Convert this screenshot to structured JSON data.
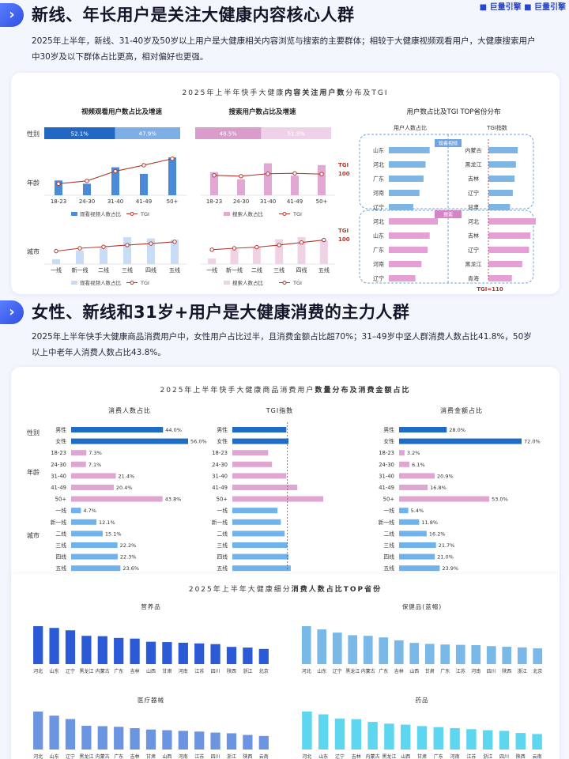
{
  "brand": "■ 巨量引擎   ■ 巨量引擎",
  "section1": {
    "title": "新线、年长用户是关注大健康内容核心人群",
    "text": "2025年上半年，新线、31-40岁及50岁以上用户是大健康相关内容浏览与搜索的主要群体；相较于大健康视频观看用户，大健康搜索用户中30岁及以下群体占比更高，相对偏好也更强。"
  },
  "section2": {
    "title": "女性、新线和31岁+用户是大健康消费的主力人群",
    "text": "2025年上半年快手大健康商品消费用户中，女性用户占比过半，且消费金额占比超70%；31–49岁中坚人群消费人数占比41.8%，50岁以上中老年人消费人数占比43.8%。"
  },
  "card1": {
    "title_pre": "2025年上半年快手大健康",
    "title_bold": "内容关注用户数",
    "title_post": "分布及TGI",
    "row_labels": {
      "gender": "性别",
      "age": "年龄",
      "city": "城市"
    },
    "tgi_label": "TGI",
    "tgi_ref": "100"
  },
  "card2": {
    "title_pre": "2025年上半年快手大健康商品消费用户",
    "title_bold": "数量分布及消费金额占比",
    "row_labels": {
      "gender": "性别",
      "age": "年龄",
      "city": "城市"
    },
    "tgi_ref": "TGI=100"
  },
  "card3": {
    "title_pre": "2025年上半年大健康细分",
    "title_bold": "消费人数占比TOP省份"
  },
  "chart_data": [
    {
      "type": "bar",
      "title": "视频观看用户数占比及增速",
      "categories": [
        "男",
        "女"
      ],
      "value_labels": [
        "52.1%",
        "47.9%"
      ],
      "values": [
        52.1,
        47.9
      ]
    },
    {
      "type": "bar",
      "title": "搜索用户数占比及增速",
      "categories": [
        "男",
        "女"
      ],
      "value_labels": [
        "48.5%",
        "51.5%"
      ],
      "values": [
        48.5,
        51.5
      ]
    },
    {
      "type": "bar",
      "title": "视频观看用户数占比及增速 - 年龄",
      "categories": [
        "18-23",
        "24-30",
        "31-40",
        "41-49",
        "50+"
      ],
      "series": [
        {
          "name": "观看视频人数占比",
          "values": [
            9,
            7,
            17,
            13,
            23
          ]
        },
        {
          "name": "TGI",
          "values": [
            78,
            84,
            105,
            118,
            132
          ]
        }
      ]
    },
    {
      "type": "bar",
      "title": "搜索用户数占比及增速 - 年龄",
      "categories": [
        "18-23",
        "24-30",
        "31-40",
        "41-49",
        "50+"
      ],
      "series": [
        {
          "name": "搜索人数占比",
          "values": [
            13,
            9,
            18,
            11,
            17
          ]
        },
        {
          "name": "TGI",
          "values": [
            100,
            98,
            104,
            105,
            103
          ]
        }
      ]
    },
    {
      "type": "bar",
      "title": "视频观看用户数占比及增速 - 城市",
      "categories": [
        "一线",
        "新一线",
        "二线",
        "三线",
        "四线",
        "五线"
      ],
      "series": [
        {
          "name": "观看视频人数占比",
          "values": [
            4,
            11,
            13,
            22,
            21,
            20
          ]
        },
        {
          "name": "TGI",
          "values": [
            84,
            92,
            96,
            101,
            105,
            110
          ]
        }
      ]
    },
    {
      "type": "bar",
      "title": "搜索用户数占比及增速 - 城市",
      "categories": [
        "一线",
        "新一线",
        "二线",
        "三线",
        "四线",
        "五线"
      ],
      "series": [
        {
          "name": "搜索人数占比",
          "values": [
            5,
            13,
            15,
            22,
            24,
            21
          ]
        },
        {
          "name": "TGI",
          "values": [
            88,
            92,
            95,
            101,
            108,
            115
          ]
        }
      ]
    },
    {
      "type": "bar",
      "title": "用户数占比及TGI TOP省份分布",
      "column_headers": [
        "用户人数占比",
        "TGI指数"
      ],
      "segments": [
        {
          "name": "观看视频",
          "share": {
            "categories": [
              "山东",
              "河北",
              "广东",
              "河南",
              "辽宁"
            ],
            "values": [
              10,
              9,
              8.5,
              7.5,
              6
            ]
          },
          "tgi": {
            "categories": [
              "内蒙古",
              "黑龙江",
              "吉林",
              "辽宁",
              "甘肃"
            ],
            "values": [
              135,
              131,
              128,
              124,
              118
            ]
          }
        },
        {
          "name": "搜索",
          "share": {
            "categories": [
              "河北",
              "山东",
              "广东",
              "河南",
              "辽宁"
            ],
            "values": [
              12,
              10,
              9.5,
              8,
              6.5
            ]
          },
          "tgi": {
            "categories": [
              "河北",
              "吉林",
              "辽宁",
              "黑龙江",
              "青海"
            ],
            "values": [
              175,
              163,
              160,
              145,
              122
            ]
          }
        }
      ],
      "reference": "TGI=110"
    },
    {
      "type": "bar",
      "title": "消费人数占比",
      "categories": [
        "男性",
        "女性",
        "18-23",
        "24-30",
        "31-40",
        "41-49",
        "50+",
        "一线",
        "新一线",
        "二线",
        "三线",
        "四线",
        "五线"
      ],
      "values": [
        44.0,
        56.0,
        7.3,
        7.1,
        21.4,
        20.4,
        43.8,
        4.7,
        12.1,
        15.1,
        22.2,
        22.3,
        23.6
      ],
      "value_labels": [
        "44.0%",
        "56.0%",
        "7.3%",
        "7.1%",
        "21.4%",
        "20.4%",
        "43.8%",
        "4.7%",
        "12.1%",
        "15.1%",
        "22.2%",
        "22.3%",
        "23.6%"
      ]
    },
    {
      "type": "bar",
      "title": "TGI指数",
      "categories": [
        "男性",
        "女性",
        "18-23",
        "24-30",
        "31-40",
        "41-49",
        "50+",
        "一线",
        "新一线",
        "二线",
        "三线",
        "四线",
        "五线"
      ],
      "values": [
        98,
        102,
        65,
        72,
        98,
        118,
        165,
        82,
        88,
        95,
        100,
        102,
        106
      ],
      "reference": 100
    },
    {
      "type": "bar",
      "title": "消费金额占比",
      "categories": [
        "男性",
        "女性",
        "18-23",
        "24-30",
        "31-40",
        "41-49",
        "50+",
        "一线",
        "新一线",
        "二线",
        "三线",
        "四线",
        "五线"
      ],
      "values": [
        28.0,
        72.0,
        3.2,
        6.1,
        20.9,
        16.8,
        53.0,
        5.4,
        11.8,
        16.2,
        21.7,
        21.0,
        23.9
      ],
      "value_labels": [
        "28.0%",
        "72.0%",
        "3.2%",
        "6.1%",
        "20.9%",
        "16.8%",
        "53.0%",
        "5.4%",
        "11.8%",
        "16.2%",
        "21.7%",
        "21.0%",
        "23.9%"
      ]
    },
    {
      "type": "bar",
      "title": "营养品",
      "categories": [
        "河北",
        "山东",
        "辽宁",
        "黑龙江",
        "内蒙古",
        "广东",
        "吉林",
        "山西",
        "甘肃",
        "河南",
        "江苏",
        "四川",
        "陕西",
        "浙江",
        "北京"
      ],
      "values": [
        11,
        10.5,
        9.8,
        8.2,
        8.1,
        7.6,
        7.4,
        6.5,
        6.4,
        6.2,
        6.0,
        5.8,
        5.0,
        4.8,
        4.4
      ]
    },
    {
      "type": "bar",
      "title": "保健品(蓝帽)",
      "categories": [
        "河北",
        "山东",
        "辽宁",
        "黑龙江",
        "内蒙古",
        "广东",
        "吉林",
        "山西",
        "甘肃",
        "广东",
        "江苏",
        "河南",
        "四川",
        "陕西",
        "浙江",
        "北京"
      ],
      "values": [
        11.8,
        10.8,
        9.8,
        9.0,
        8.8,
        8.3,
        7.4,
        6.6,
        6.3,
        6.1,
        6.0,
        5.9,
        5.6,
        5.4,
        5.2,
        4.9
      ]
    },
    {
      "type": "bar",
      "title": "医疗器械",
      "categories": [
        "河北",
        "山东",
        "辽宁",
        "黑龙江",
        "内蒙古",
        "广东",
        "吉林",
        "甘肃",
        "山西",
        "河南",
        "江苏",
        "四川",
        "浙江",
        "陕西",
        "云南"
      ],
      "values": [
        11.2,
        10.0,
        9.0,
        7.0,
        6.9,
        6.7,
        6.3,
        5.9,
        5.7,
        5.5,
        5.3,
        5.0,
        4.8,
        4.3,
        4.0
      ]
    },
    {
      "type": "bar",
      "title": "药品",
      "categories": [
        "河北",
        "山东",
        "辽宁",
        "吉林",
        "内蒙古",
        "黑龙江",
        "山西",
        "甘肃",
        "广东",
        "河南",
        "江苏",
        "浙江",
        "四川",
        "陕西",
        "云南"
      ],
      "values": [
        11.0,
        10.2,
        9.0,
        8.8,
        8.0,
        7.5,
        7.2,
        6.8,
        6.5,
        6.2,
        5.9,
        5.6,
        5.4,
        4.8,
        4.5
      ]
    }
  ]
}
